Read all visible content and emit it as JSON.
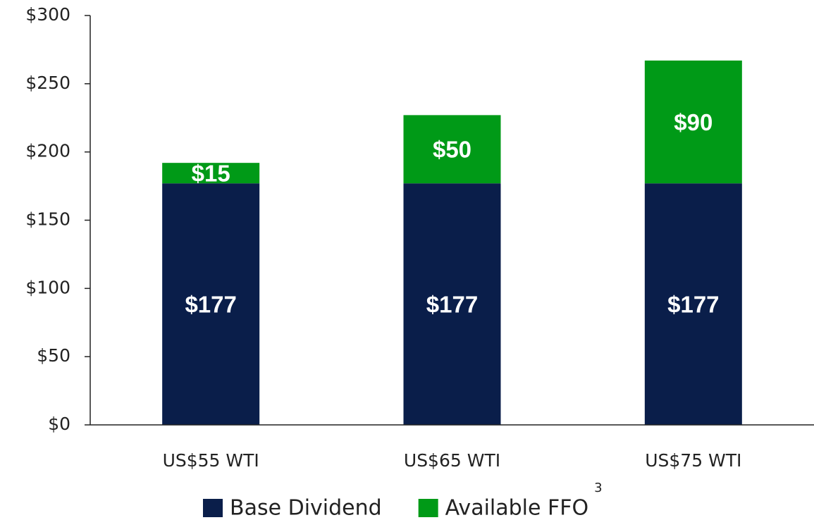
{
  "chart_data": {
    "type": "stacked_bar",
    "categories": [
      "US$55 WTI",
      "US$65 WTI",
      "US$75 WTI"
    ],
    "series": [
      {
        "name": "Base Dividend",
        "color": "#0a1e4a",
        "values": [
          177,
          177,
          177
        ],
        "value_labels": [
          "$177",
          "$177",
          "$177"
        ]
      },
      {
        "name": "Available FFO",
        "color": "#009a17",
        "values": [
          15,
          50,
          90
        ],
        "value_labels": [
          "$15",
          "$50",
          "$90"
        ]
      }
    ],
    "legend_superscript": "3",
    "ylim": [
      0,
      300
    ],
    "yticks": [
      {
        "value": 0,
        "label": "$0"
      },
      {
        "value": 50,
        "label": "$50"
      },
      {
        "value": 100,
        "label": "$100"
      },
      {
        "value": 150,
        "label": "$150"
      },
      {
        "value": 200,
        "label": "$200"
      },
      {
        "value": 250,
        "label": "$250"
      },
      {
        "value": 300,
        "label": "$300"
      }
    ],
    "legend": "bottom"
  }
}
